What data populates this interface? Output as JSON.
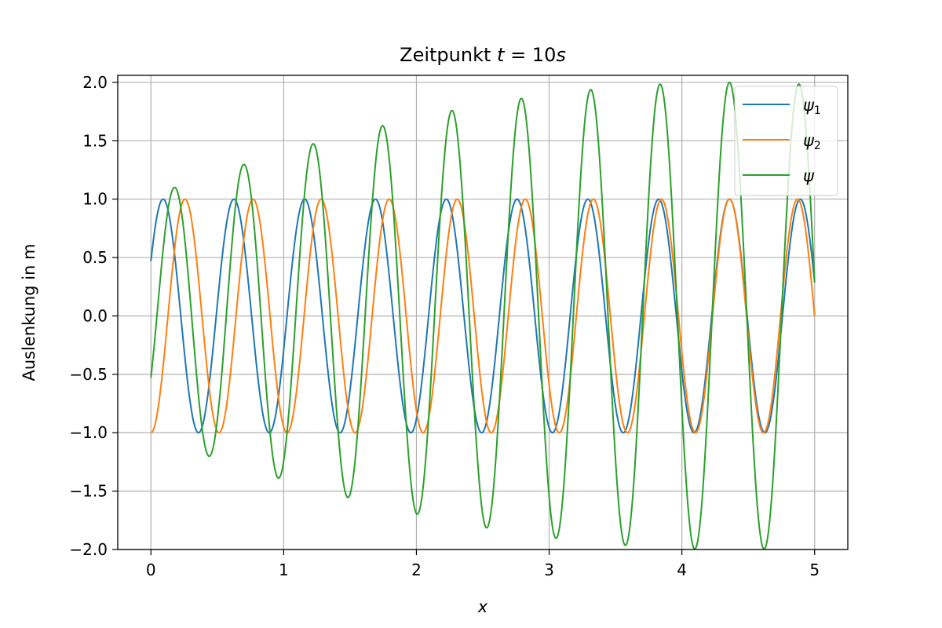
{
  "chart_data": {
    "type": "line",
    "title_text": "Zeitpunkt ",
    "title_var": "t",
    "title_rest": " = 10",
    "title_unit": "s",
    "xlabel": "x",
    "ylabel": "Auslenkung in m",
    "xlim": [
      -0.25,
      5.25
    ],
    "ylim": [
      -2.0,
      2.06
    ],
    "xticks": [
      0,
      1,
      2,
      3,
      4,
      5
    ],
    "xtick_labels": [
      "0",
      "1",
      "2",
      "3",
      "4",
      "5"
    ],
    "yticks": [
      -2.0,
      -1.5,
      -1.0,
      -0.5,
      0.0,
      0.5,
      1.0,
      1.5,
      2.0
    ],
    "ytick_labels": [
      "−2.0",
      "−1.5",
      "−1.0",
      "−0.5",
      "0.0",
      "0.5",
      "1.0",
      "1.5",
      "2.0"
    ],
    "grid": true,
    "legend_position": "top-right",
    "series": [
      {
        "legend_symbol": "ψ",
        "legend_sub": "1",
        "color": "#1f77b4",
        "x_range": [
          0,
          5
        ],
        "wavelength": 0.5333,
        "phase_deg": 28,
        "amplitude_start": 1.0,
        "amplitude_end": 1.0
      },
      {
        "legend_symbol": "ψ",
        "legend_sub": "2",
        "color": "#ff7f0e",
        "x_range": [
          0,
          5
        ],
        "wavelength": 0.5128,
        "phase_deg": 270,
        "amplitude_start": 1.0,
        "amplitude_end": 1.0
      },
      {
        "legend_symbol": "ψ",
        "legend_sub": "",
        "color": "#2ca02c",
        "x_range": [
          0,
          5
        ],
        "is_sum_of_above": true,
        "amplitude_growth_start": 0.0,
        "amplitude_growth_end": 0.96
      }
    ]
  }
}
